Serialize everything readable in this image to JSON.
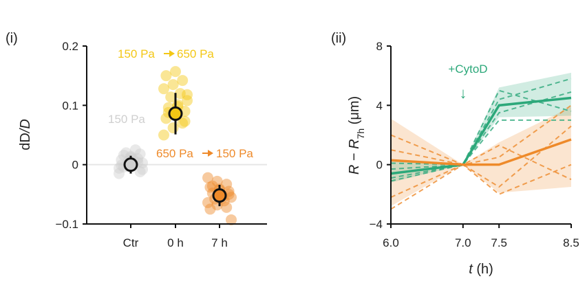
{
  "chart_data": [
    {
      "panel_label": "(i)",
      "type": "scatter",
      "ylabel_main": "dD",
      "ylabel_sep": "/",
      "ylabel_den": "D",
      "ylim": [
        -0.1,
        0.2
      ],
      "yticks": [
        {
          "v": 0.2,
          "label": "0.2"
        },
        {
          "v": 0.1,
          "label": "0.1"
        },
        {
          "v": 0,
          "label": "0"
        },
        {
          "v": -0.1,
          "label": "−0.1"
        }
      ],
      "categories": [
        "Ctr",
        "0 h",
        "7 h"
      ],
      "series": [
        {
          "name": "150 Pa",
          "color": "#cfcfcf",
          "mean": 0.0,
          "err": 0.015,
          "points": [
            -0.006,
            -0.003,
            0.004,
            0.008,
            0.012,
            -0.012,
            0.016,
            0.002,
            -0.008,
            0.02,
            0.025,
            -0.015,
            0.006,
            0.01,
            -0.001,
            0.014,
            0.018,
            -0.004,
            0.009,
            0.003
          ]
        },
        {
          "name_left": "150 Pa",
          "name_right": "650 Pa",
          "color": "#f3c715",
          "mean": 0.086,
          "err": 0.035,
          "points": [
            0.05,
            0.062,
            0.07,
            0.078,
            0.083,
            0.09,
            0.096,
            0.101,
            0.108,
            0.114,
            0.12,
            0.128,
            0.135,
            0.142,
            0.15,
            0.157,
            0.073,
            0.088,
            0.098,
            0.118
          ]
        },
        {
          "name_left": "650 Pa",
          "name_right": "150 Pa",
          "color": "#ee8a2a",
          "mean": -0.052,
          "err": 0.018,
          "points": [
            -0.022,
            -0.028,
            -0.033,
            -0.038,
            -0.041,
            -0.045,
            -0.048,
            -0.051,
            -0.055,
            -0.058,
            -0.061,
            -0.064,
            -0.068,
            -0.072,
            -0.075,
            -0.043,
            -0.05,
            -0.036,
            -0.057,
            -0.093
          ]
        }
      ]
    },
    {
      "panel_label": "(ii)",
      "type": "line",
      "ylabel_r": "R",
      "ylabel_mid": " − ",
      "ylabel_r2": "R",
      "ylabel_sub": "7h",
      "ylabel_unit": " (μm)",
      "xlabel_var": "t",
      "xlabel_unit": " (h)",
      "xlim": [
        6.0,
        8.5
      ],
      "ylim": [
        -4,
        8
      ],
      "xticks": [
        {
          "v": 6.0,
          "label": "6.0"
        },
        {
          "v": 7.0,
          "label": "7.0"
        },
        {
          "v": 7.5,
          "label": "7.5"
        },
        {
          "v": 8.5,
          "label": "8.5"
        }
      ],
      "yticks": [
        {
          "v": 8,
          "label": "8"
        },
        {
          "v": 4,
          "label": "4"
        },
        {
          "v": 0,
          "label": "0"
        },
        {
          "v": -4,
          "label": "−4"
        }
      ],
      "annotation": "+CytoD",
      "annotation_arrow": "↓",
      "series": [
        {
          "color": "#2ca87a",
          "x": [
            6.0,
            7.0,
            7.5,
            8.5
          ],
          "mean": [
            -0.6,
            0.0,
            4.0,
            4.5
          ],
          "band_lo": [
            -1.2,
            0.0,
            3.2,
            3.3
          ],
          "band_hi": [
            0.3,
            0.0,
            5.2,
            6.2
          ],
          "replicates": [
            [
              -0.9,
              0.0,
              4.4,
              5.8
            ],
            [
              -0.3,
              0.0,
              3.5,
              4.9
            ],
            [
              -1.1,
              0.0,
              5.0,
              3.6
            ],
            [
              0.1,
              0.0,
              3.0,
              3.0
            ]
          ]
        },
        {
          "color": "#ee8a2a",
          "x": [
            6.0,
            7.0,
            7.5,
            8.5
          ],
          "mean": [
            0.3,
            0.0,
            0.0,
            1.7
          ],
          "band_lo": [
            -2.8,
            0.0,
            -1.9,
            -1.5
          ],
          "band_hi": [
            3.1,
            0.0,
            1.5,
            3.9
          ],
          "replicates": [
            [
              -3.0,
              0.0,
              -2.0,
              0.0
            ],
            [
              2.0,
              0.0,
              0.5,
              4.0
            ],
            [
              -2.2,
              0.0,
              1.3,
              -1.0
            ],
            [
              1.0,
              0.0,
              -1.5,
              2.6
            ]
          ]
        }
      ]
    }
  ]
}
